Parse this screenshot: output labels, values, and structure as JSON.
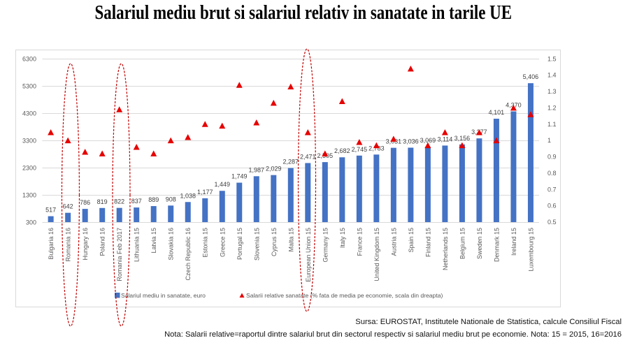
{
  "title": "Salariul mediu brut si salariul relativ in sanatate in tarile UE",
  "chart_data": {
    "type": "bar",
    "title": "Salariul mediu brut si salariul relativ in sanatate in tarile UE",
    "xlabel": "",
    "ylabel": "",
    "categories": [
      "Bulgaria 16",
      "Romania 16",
      "Hungary 16",
      "Poland 16",
      "Romania Feb 2017",
      "Lithuania 15",
      "Latvia 15",
      "Slovakia 16",
      "Czech Republic 16",
      "Estonia 15",
      "Greece 15",
      "Portugal 15",
      "Slovenia 15",
      "Cyprus 15",
      "Malta 15",
      "European Union 15",
      "Germany 15",
      "Italy 15",
      "France 15",
      "United Kingdom 15",
      "Austria 15",
      "Spain 15",
      "Finland 15",
      "Netherlands 15",
      "Belgium 15",
      "Sweden 15",
      "Denmark 15",
      "Ireland 15",
      "Luxembourg 15"
    ],
    "series": [
      {
        "name": "Salariul mediu in sanatate, euro",
        "type": "bar",
        "axis": "left",
        "color": "#4472c4",
        "values": [
          517,
          642,
          786,
          819,
          822,
          837,
          889,
          908,
          1038,
          1177,
          1449,
          1749,
          1987,
          2029,
          2287,
          2471,
          2505,
          2682,
          2745,
          2783,
          3031,
          3036,
          3069,
          3114,
          3156,
          3377,
          4101,
          4370,
          5406
        ],
        "labels": [
          "517",
          "642",
          "786",
          "819",
          "822",
          "837",
          "889",
          "908",
          "1,038",
          "1,177",
          "1,449",
          "1,749",
          "1,987",
          "2,029",
          "2,287",
          "2,471",
          "2,505",
          "2,682",
          "2,745",
          "2,783",
          "3,031",
          "3,036",
          "3,069",
          "3,114",
          "3,156",
          "3,377",
          "4,101",
          "4,370",
          "5,406"
        ]
      },
      {
        "name": "Salarii relative sanatate (% fata de media pe economie, scala din dreapta)",
        "type": "scatter",
        "marker": "triangle",
        "axis": "right",
        "color": "#e60000",
        "values": [
          1.05,
          1.0,
          0.93,
          0.92,
          1.19,
          0.96,
          0.92,
          1.0,
          1.02,
          1.1,
          1.09,
          1.34,
          1.11,
          1.23,
          1.33,
          1.05,
          0.92,
          1.24,
          0.99,
          0.97,
          1.01,
          1.44,
          0.97,
          1.05,
          0.97,
          1.05,
          1.0,
          1.2,
          1.16
        ]
      }
    ],
    "y_left": {
      "min": 300,
      "max": 6300,
      "ticks": [
        300,
        1300,
        2300,
        3300,
        4300,
        5300,
        6300
      ]
    },
    "y_right": {
      "min": 0.5,
      "max": 1.5,
      "ticks": [
        0.5,
        0.6,
        0.7,
        0.8,
        0.9,
        1,
        1.1,
        1.2,
        1.3,
        1.4,
        1.5
      ],
      "tick_labels": [
        "0.5",
        "0.6",
        "0.7",
        "0.8",
        "0.9",
        "1",
        "1.1",
        "1.2",
        "1.3",
        "1.4",
        "1.5"
      ]
    },
    "grid": true,
    "legend_position": "bottom",
    "highlighted_categories": [
      "Romania 16",
      "Romania Feb 2017",
      "European Union 15"
    ],
    "highlight_color": "#c00000"
  },
  "notes": {
    "source": "Sursa: EUROSTAT, Institutele Nationale de Statistica, calcule Consiliul Fiscal",
    "note": "Nota: Salarii relative=raportul dintre salariul brut din sectorul respectiv si salariul mediu brut pe economie. Nota: 15 = 2015, 16=2016"
  }
}
